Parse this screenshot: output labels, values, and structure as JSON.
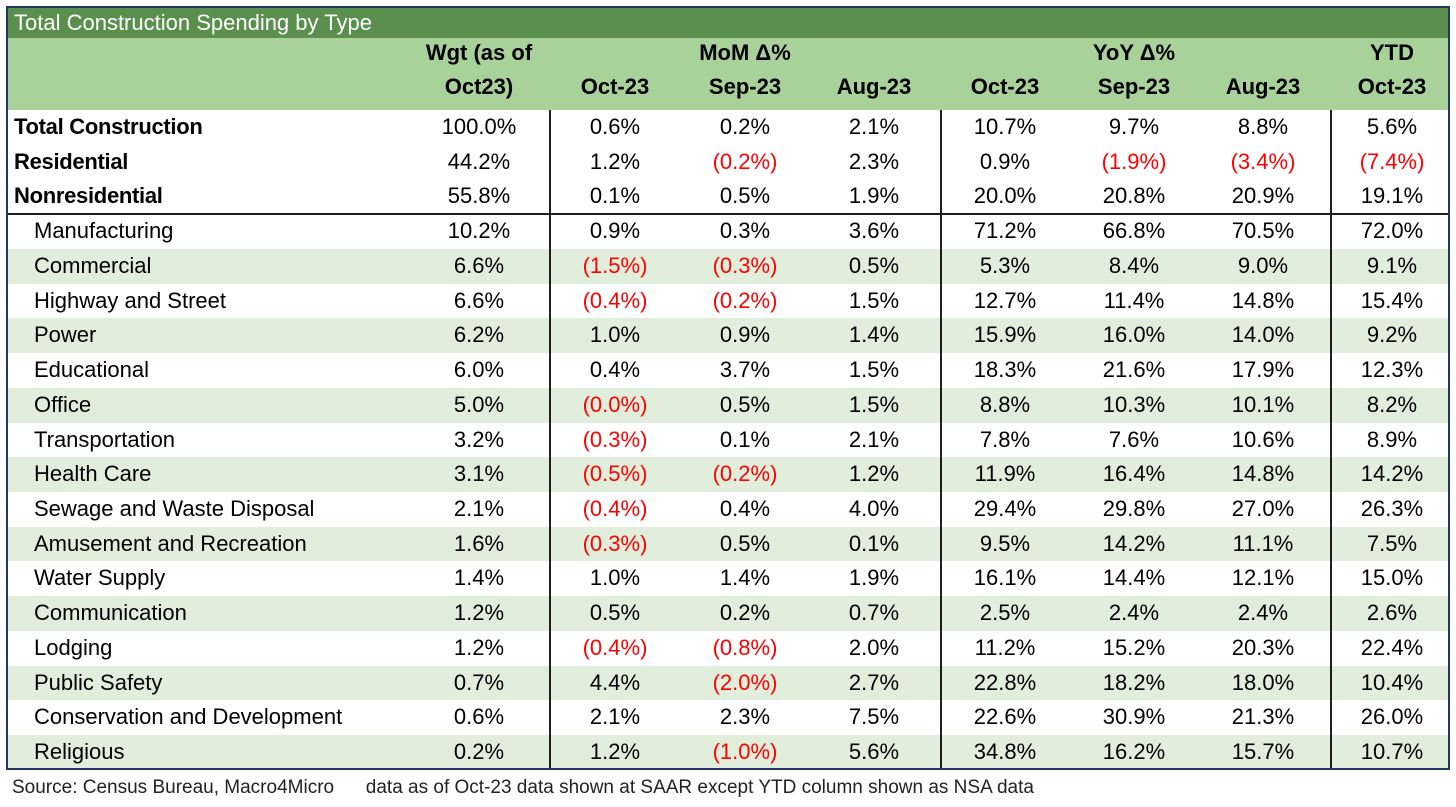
{
  "chart_data": {
    "type": "table",
    "title": "Total Construction Spending by Type",
    "header_groups": [
      "MoM Δ%",
      "YoY Δ%",
      "YTD"
    ],
    "columns": [
      "Wgt (as of Oct23)",
      "Oct-23",
      "Sep-23",
      "Aug-23",
      "Oct-23",
      "Sep-23",
      "Aug-23",
      "Oct-23"
    ],
    "col_header_lines": [
      [
        "Wgt (as of",
        "Oct23)"
      ],
      [
        "",
        "Oct-23"
      ],
      [
        "MoM Δ%",
        "Sep-23"
      ],
      [
        "",
        "Aug-23"
      ],
      [
        "",
        "Oct-23"
      ],
      [
        "YoY Δ%",
        "Sep-23"
      ],
      [
        "",
        "Aug-23"
      ],
      [
        "YTD",
        "Oct-23"
      ]
    ],
    "rows": [
      {
        "label": "Total Construction",
        "level": "top",
        "values": [
          "100.0%",
          "0.6%",
          "0.2%",
          "2.1%",
          "10.7%",
          "9.7%",
          "8.8%",
          "5.6%"
        ]
      },
      {
        "label": "Residential",
        "level": "top",
        "values": [
          "44.2%",
          "1.2%",
          "(0.2%)",
          "2.3%",
          "0.9%",
          "(1.9%)",
          "(3.4%)",
          "(7.4%)"
        ]
      },
      {
        "label": "Nonresidential",
        "level": "top",
        "values": [
          "55.8%",
          "0.1%",
          "0.5%",
          "1.9%",
          "20.0%",
          "20.8%",
          "20.9%",
          "19.1%"
        ]
      },
      {
        "label": "Manufacturing",
        "level": "sub",
        "values": [
          "10.2%",
          "0.9%",
          "0.3%",
          "3.6%",
          "71.2%",
          "66.8%",
          "70.5%",
          "72.0%"
        ]
      },
      {
        "label": "Commercial",
        "level": "sub",
        "values": [
          "6.6%",
          "(1.5%)",
          "(0.3%)",
          "0.5%",
          "5.3%",
          "8.4%",
          "9.0%",
          "9.1%"
        ]
      },
      {
        "label": "Highway and Street",
        "level": "sub",
        "values": [
          "6.6%",
          "(0.4%)",
          "(0.2%)",
          "1.5%",
          "12.7%",
          "11.4%",
          "14.8%",
          "15.4%"
        ]
      },
      {
        "label": "Power",
        "level": "sub",
        "values": [
          "6.2%",
          "1.0%",
          "0.9%",
          "1.4%",
          "15.9%",
          "16.0%",
          "14.0%",
          "9.2%"
        ]
      },
      {
        "label": "Educational",
        "level": "sub",
        "values": [
          "6.0%",
          "0.4%",
          "3.7%",
          "1.5%",
          "18.3%",
          "21.6%",
          "17.9%",
          "12.3%"
        ]
      },
      {
        "label": "Office",
        "level": "sub",
        "values": [
          "5.0%",
          "(0.0%)",
          "0.5%",
          "1.5%",
          "8.8%",
          "10.3%",
          "10.1%",
          "8.2%"
        ]
      },
      {
        "label": "Transportation",
        "level": "sub",
        "values": [
          "3.2%",
          "(0.3%)",
          "0.1%",
          "2.1%",
          "7.8%",
          "7.6%",
          "10.6%",
          "8.9%"
        ]
      },
      {
        "label": "Health Care",
        "level": "sub",
        "values": [
          "3.1%",
          "(0.5%)",
          "(0.2%)",
          "1.2%",
          "11.9%",
          "16.4%",
          "14.8%",
          "14.2%"
        ]
      },
      {
        "label": "Sewage and Waste Disposal",
        "level": "sub",
        "values": [
          "2.1%",
          "(0.4%)",
          "0.4%",
          "4.0%",
          "29.4%",
          "29.8%",
          "27.0%",
          "26.3%"
        ]
      },
      {
        "label": "Amusement and Recreation",
        "level": "sub",
        "values": [
          "1.6%",
          "(0.3%)",
          "0.5%",
          "0.1%",
          "9.5%",
          "14.2%",
          "11.1%",
          "7.5%"
        ]
      },
      {
        "label": "Water Supply",
        "level": "sub",
        "values": [
          "1.4%",
          "1.0%",
          "1.4%",
          "1.9%",
          "16.1%",
          "14.4%",
          "12.1%",
          "15.0%"
        ]
      },
      {
        "label": "Communication",
        "level": "sub",
        "values": [
          "1.2%",
          "0.5%",
          "0.2%",
          "0.7%",
          "2.5%",
          "2.4%",
          "2.4%",
          "2.6%"
        ]
      },
      {
        "label": "Lodging",
        "level": "sub",
        "values": [
          "1.2%",
          "(0.4%)",
          "(0.8%)",
          "2.0%",
          "11.2%",
          "15.2%",
          "20.3%",
          "22.4%"
        ]
      },
      {
        "label": "Public Safety",
        "level": "sub",
        "values": [
          "0.7%",
          "4.4%",
          "(2.0%)",
          "2.7%",
          "22.8%",
          "18.2%",
          "18.0%",
          "10.4%"
        ]
      },
      {
        "label": "Conservation and Development",
        "level": "sub",
        "values": [
          "0.6%",
          "2.1%",
          "2.3%",
          "7.5%",
          "22.6%",
          "30.9%",
          "21.3%",
          "26.0%"
        ]
      },
      {
        "label": "Religious",
        "level": "sub",
        "values": [
          "0.2%",
          "1.2%",
          "(1.0%)",
          "5.6%",
          "34.8%",
          "16.2%",
          "15.7%",
          "10.7%"
        ]
      }
    ],
    "source": "Source: Census Bureau, Macro4Micro",
    "note": "data as of Oct-23 data shown at SAAR except YTD column shown as NSA data"
  },
  "colors": {
    "title_bar": "#5a8f4e",
    "header_band": "#a9d19a",
    "row_shade": "#e1eedb",
    "negative": "#ff0000",
    "border": "#1f3864"
  }
}
